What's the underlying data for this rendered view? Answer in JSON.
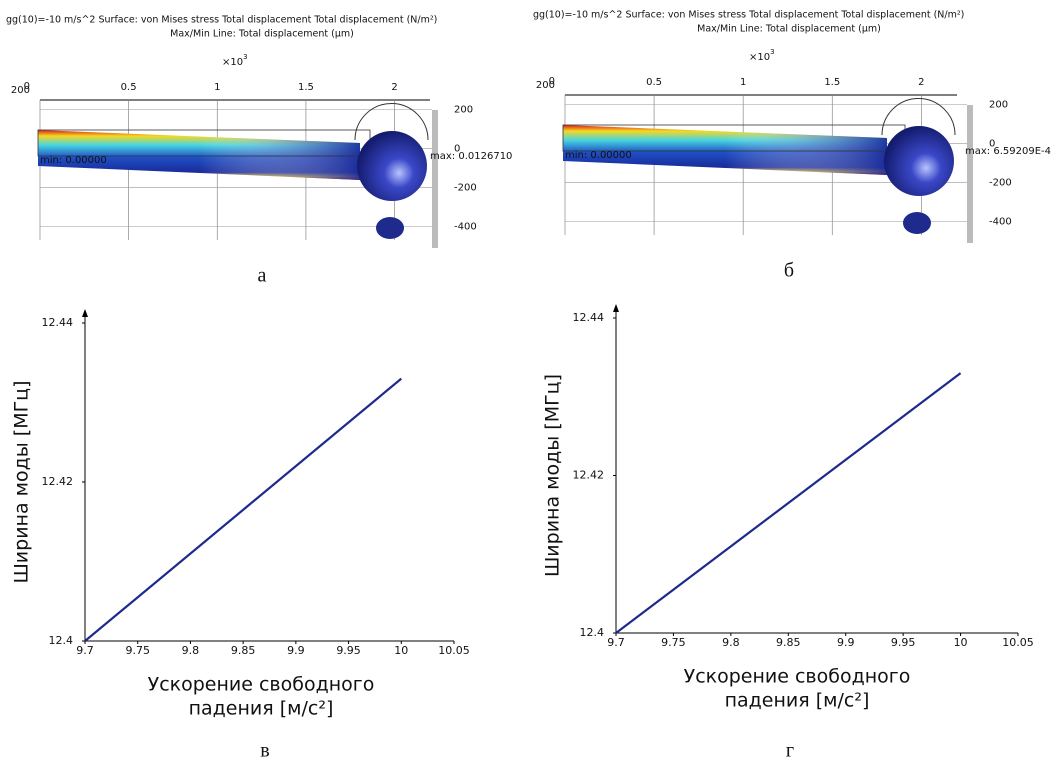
{
  "simulations": [
    {
      "title_lines": [
        "gg(10)=-10 m/s^2   Surface: von Mises stress Total displacement Total displacement (N/m²)",
        "Max/Min Line: Total displacement (µm)"
      ],
      "scale_base": "×10",
      "scale_exponent": "3",
      "corner_label": "200",
      "xlim": [
        0,
        2.2
      ],
      "xticks": [
        0,
        0.5,
        1,
        1.5,
        2
      ],
      "ylim": [
        250,
        -520
      ],
      "yticks": [
        200,
        0,
        -200,
        -400
      ],
      "max_label": "max: 0.0126710",
      "min_label": "min: 0.00000",
      "caption": "а"
    },
    {
      "title_lines": [
        "gg(10)=-10 m/s^2   Surface: von Mises stress Total displacement Total displacement (N/m²)",
        "Max/Min Line: Total displacement (µm)"
      ],
      "scale_base": "×10",
      "scale_exponent": "3",
      "corner_label": "200",
      "xlim": [
        0,
        2.2
      ],
      "xticks": [
        0,
        0.5,
        1,
        1.5,
        2
      ],
      "ylim": [
        250,
        -520
      ],
      "yticks": [
        200,
        0,
        -200,
        -400
      ],
      "max_label": "max: 6.59209E-4",
      "min_label": "min: 0.00000",
      "caption": "б"
    }
  ],
  "chart_data": [
    {
      "type": "line",
      "x": [
        9.7,
        10
      ],
      "series": [
        {
          "values": [
            12.4,
            12.433
          ],
          "color": "#1c2a8c"
        }
      ],
      "xlim": [
        9.7,
        10.05
      ],
      "xticks": [
        9.7,
        9.75,
        9.8,
        9.85,
        9.9,
        9.95,
        10,
        10.05
      ],
      "ylim": [
        12.4,
        12.44
      ],
      "yticks": [
        12.4,
        12.42,
        12.44
      ],
      "ylabel": "Ширина моды [МГц]",
      "xlabel": [
        "Ускорение свободного",
        "падения [м/с²]"
      ],
      "caption": "в"
    },
    {
      "type": "line",
      "x": [
        9.7,
        10
      ],
      "series": [
        {
          "values": [
            12.4,
            12.433
          ],
          "color": "#1c2a8c"
        }
      ],
      "xlim": [
        9.7,
        10.05
      ],
      "xticks": [
        9.7,
        9.75,
        9.8,
        9.85,
        9.9,
        9.95,
        10,
        10.05
      ],
      "ylim": [
        12.4,
        12.44
      ],
      "yticks": [
        12.4,
        12.42,
        12.44
      ],
      "ylabel": "Ширина моды [МГц]",
      "xlabel": [
        "Ускорение свободного",
        "падения [м/с²]"
      ],
      "caption": "г"
    }
  ]
}
